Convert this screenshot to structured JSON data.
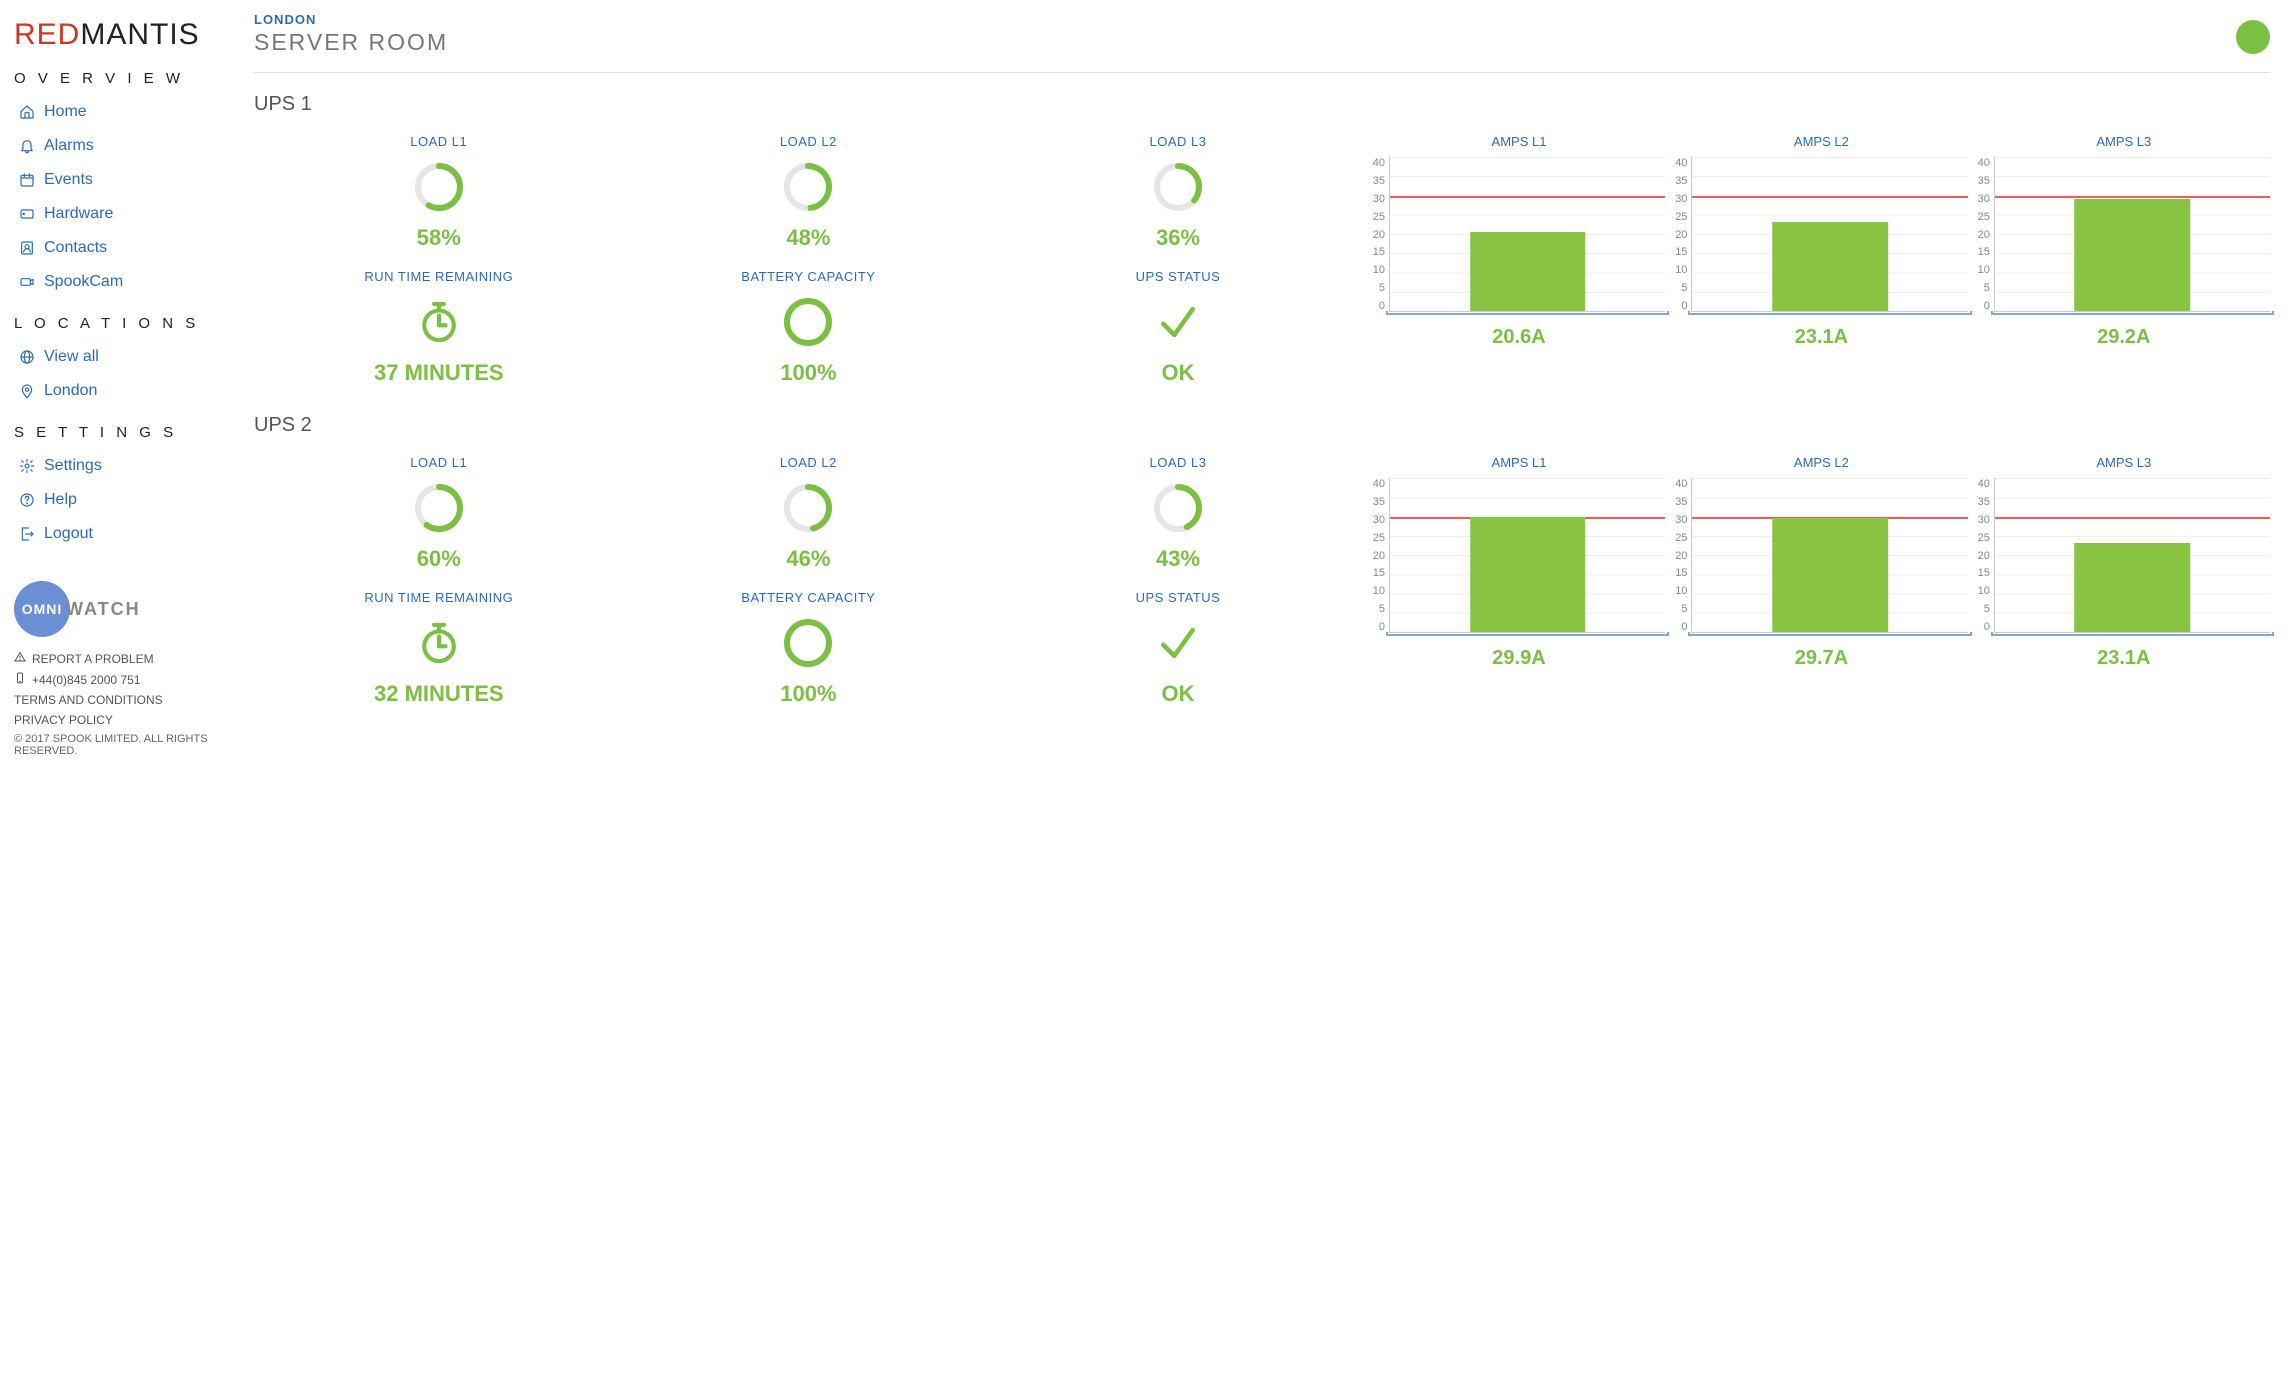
{
  "brand": {
    "red": "RED",
    "mantis": "MANTIS"
  },
  "colors": {
    "link": "#2a6bbf",
    "accent": "#7bc043",
    "bar": "#89c543",
    "threshold": "#ef5b5b",
    "grid": "#eeeeee",
    "text_muted": "#888888"
  },
  "nav": {
    "overview_title": "O V E R V I E W",
    "locations_title": "L O C A T I O N S",
    "settings_title": "S E T T I N G S",
    "overview": [
      {
        "label": "Home",
        "icon": "home"
      },
      {
        "label": "Alarms",
        "icon": "bell"
      },
      {
        "label": "Events",
        "icon": "calendar"
      },
      {
        "label": "Hardware",
        "icon": "device"
      },
      {
        "label": "Contacts",
        "icon": "contacts"
      },
      {
        "label": "SpookCam",
        "icon": "camera"
      }
    ],
    "locations": [
      {
        "label": "View all",
        "icon": "globe"
      },
      {
        "label": "London",
        "icon": "pin"
      }
    ],
    "settings": [
      {
        "label": "Settings",
        "icon": "gear"
      },
      {
        "label": "Help",
        "icon": "help"
      },
      {
        "label": "Logout",
        "icon": "logout"
      }
    ]
  },
  "footer": {
    "omni_left": "OMNI",
    "omni_right": "WATCH",
    "report": "REPORT A PROBLEM",
    "phone": "+44(0)845 2000 751",
    "terms": "TERMS AND CONDITIONS",
    "privacy": "PRIVACY POLICY",
    "copyright": "© 2017 SPOOK LIMITED. ALL RIGHTS RESERVED."
  },
  "header": {
    "location": "LONDON",
    "room": "SERVER ROOM",
    "status_color": "#7bc043"
  },
  "amps_axis": {
    "ticks": [
      "40",
      "35",
      "30",
      "25",
      "20",
      "15",
      "10",
      "5",
      "0"
    ],
    "max": 40,
    "threshold": 30
  },
  "ups": [
    {
      "title": "UPS 1",
      "loads": [
        {
          "label": "LOAD L1",
          "pct": 58,
          "display": "58%"
        },
        {
          "label": "LOAD L2",
          "pct": 48,
          "display": "48%"
        },
        {
          "label": "LOAD L3",
          "pct": 36,
          "display": "36%"
        }
      ],
      "runtime": {
        "label": "RUN TIME REMAINING",
        "display": "37 MINUTES"
      },
      "battery": {
        "label": "BATTERY CAPACITY",
        "pct": 100,
        "display": "100%"
      },
      "status": {
        "label": "UPS STATUS",
        "display": "OK"
      },
      "amps": [
        {
          "label": "AMPS L1",
          "value": 20.6,
          "display": "20.6A"
        },
        {
          "label": "AMPS L2",
          "value": 23.1,
          "display": "23.1A"
        },
        {
          "label": "AMPS L3",
          "value": 29.2,
          "display": "29.2A"
        }
      ]
    },
    {
      "title": "UPS 2",
      "loads": [
        {
          "label": "LOAD L1",
          "pct": 60,
          "display": "60%"
        },
        {
          "label": "LOAD L2",
          "pct": 46,
          "display": "46%"
        },
        {
          "label": "LOAD L3",
          "pct": 43,
          "display": "43%"
        }
      ],
      "runtime": {
        "label": "RUN TIME REMAINING",
        "display": "32 MINUTES"
      },
      "battery": {
        "label": "BATTERY CAPACITY",
        "pct": 100,
        "display": "100%"
      },
      "status": {
        "label": "UPS STATUS",
        "display": "OK"
      },
      "amps": [
        {
          "label": "AMPS L1",
          "value": 29.9,
          "display": "29.9A"
        },
        {
          "label": "AMPS L2",
          "value": 29.7,
          "display": "29.7A"
        },
        {
          "label": "AMPS L3",
          "value": 23.1,
          "display": "23.1A"
        }
      ]
    }
  ]
}
